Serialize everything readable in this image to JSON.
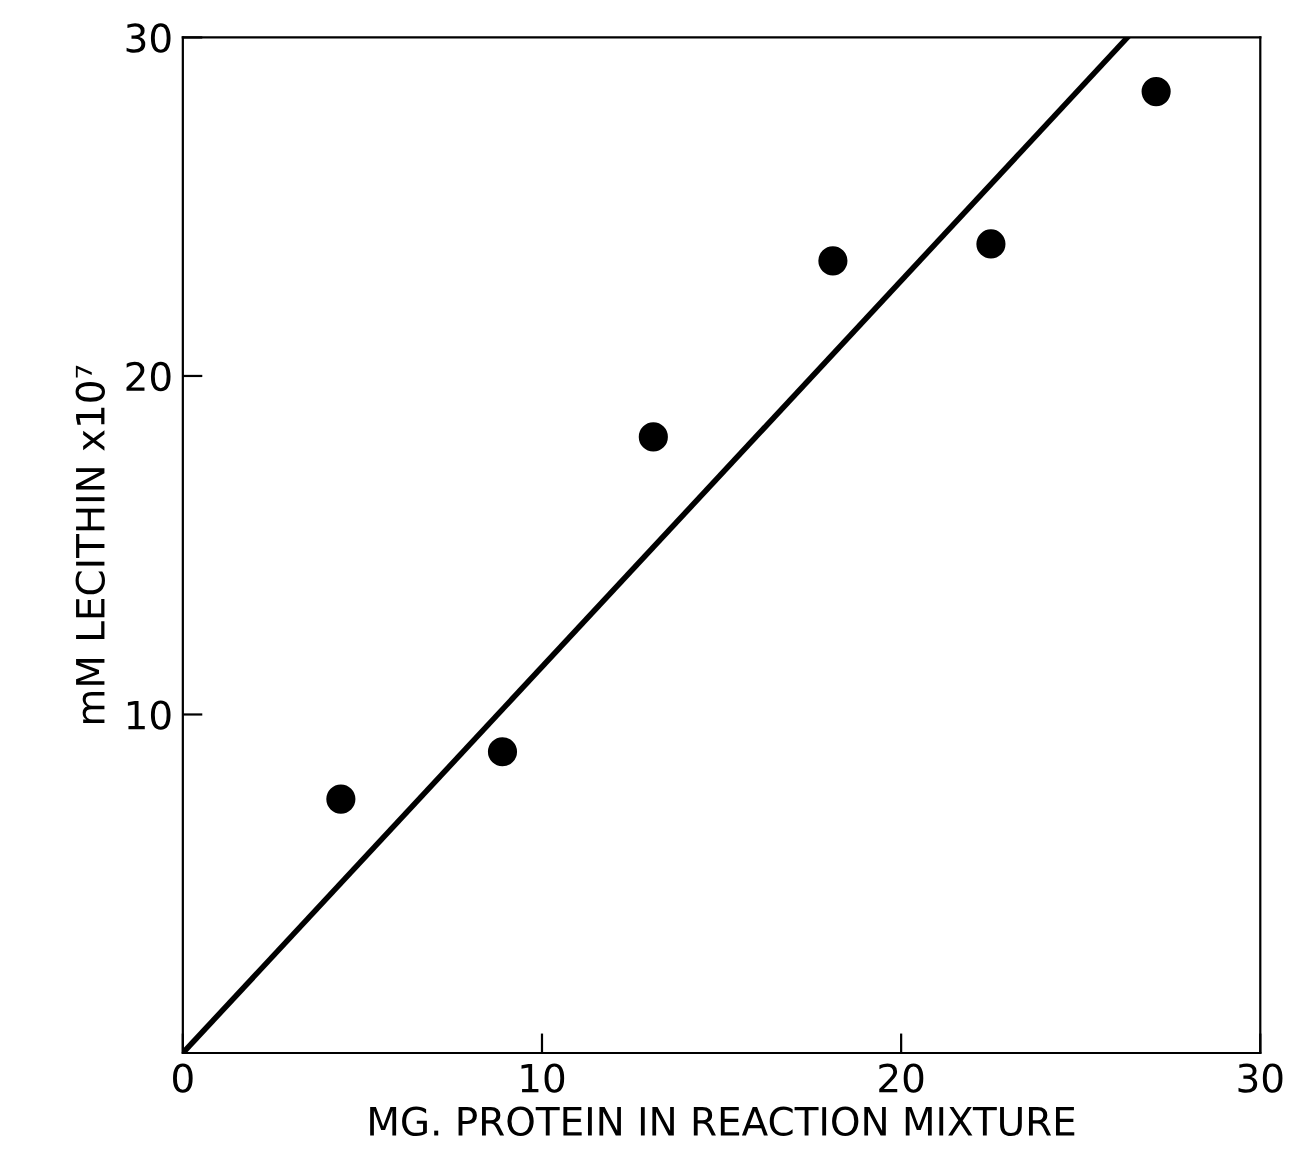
{
  "chart_data": {
    "type": "scatter",
    "xlabel": "MG. PROTEIN IN REACTION MIXTURE",
    "ylabel": "mM LECITHIN x10⁷",
    "xlim": [
      0,
      30
    ],
    "ylim": [
      0,
      30
    ],
    "xticks": [
      0,
      10,
      20,
      30
    ],
    "yticks": [
      10,
      20,
      30
    ],
    "grid": false,
    "series": [
      {
        "marker": "circle",
        "color": "#000000",
        "x": [
          4.4,
          8.9,
          13.1,
          18.1,
          22.5,
          27.1
        ],
        "values": [
          7.5,
          8.9,
          18.2,
          23.4,
          23.9,
          28.4
        ]
      },
      {
        "type": "line",
        "marker": "none",
        "color": "#000000",
        "x": [
          0,
          26.3
        ],
        "values": [
          0,
          30
        ]
      }
    ]
  }
}
